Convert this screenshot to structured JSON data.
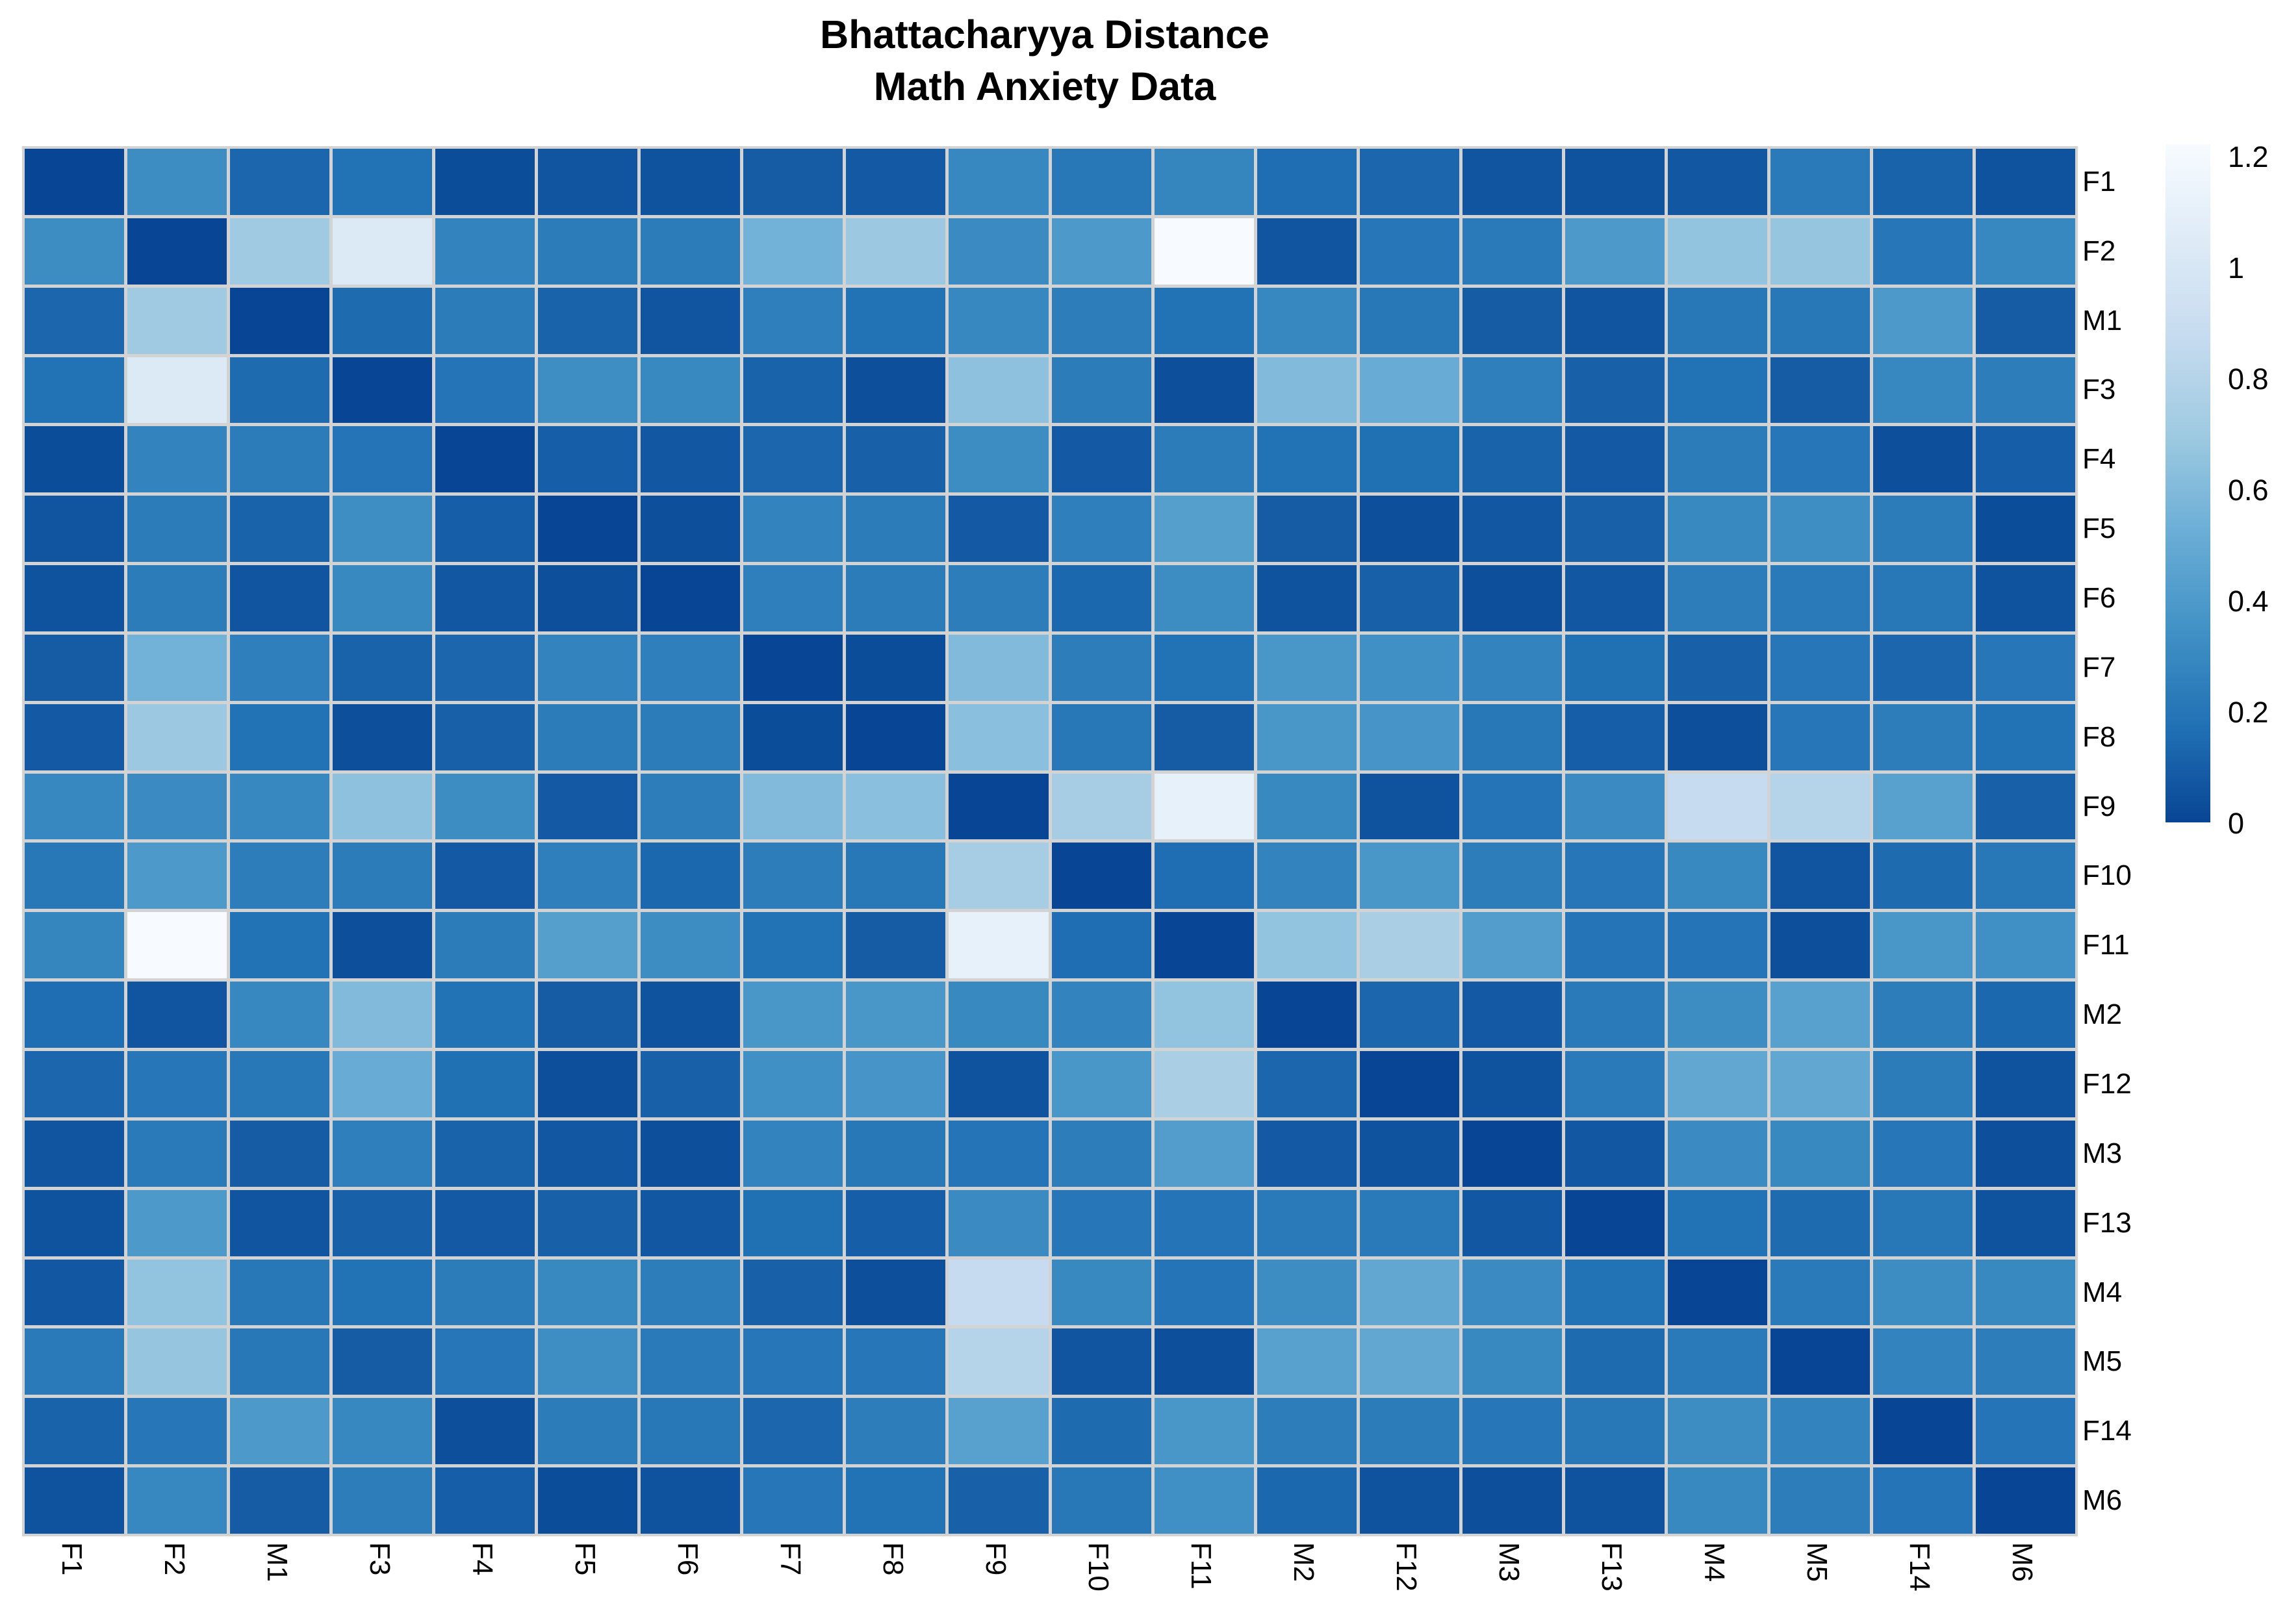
{
  "title": {
    "line1": "Bhattacharyya Distance",
    "line2": "Math Anxiety Data"
  },
  "chart_data": {
    "type": "heatmap",
    "x_labels": [
      "F1",
      "F2",
      "M1",
      "F3",
      "F4",
      "F5",
      "F6",
      "F7",
      "F8",
      "F9",
      "F10",
      "F11",
      "M2",
      "F12",
      "M3",
      "F13",
      "M4",
      "M5",
      "F14",
      "M6"
    ],
    "y_labels": [
      "F1",
      "F2",
      "M1",
      "F3",
      "F4",
      "F5",
      "F6",
      "F7",
      "F8",
      "F9",
      "F10",
      "F11",
      "M2",
      "F12",
      "M3",
      "F13",
      "M4",
      "M5",
      "F14",
      "M6"
    ],
    "matrix": [
      [
        0,
        0.32,
        0.13,
        0.18,
        0.03,
        0.06,
        0.05,
        0.09,
        0.08,
        0.29,
        0.21,
        0.28,
        0.16,
        0.13,
        0.06,
        0.05,
        0.07,
        0.22,
        0.12,
        0.05
      ],
      [
        0.32,
        0,
        0.7,
        1.03,
        0.27,
        0.23,
        0.23,
        0.55,
        0.69,
        0.31,
        0.39,
        1.22,
        0.06,
        0.2,
        0.22,
        0.39,
        0.66,
        0.67,
        0.2,
        0.29
      ],
      [
        0.13,
        0.7,
        0,
        0.15,
        0.23,
        0.12,
        0.06,
        0.25,
        0.18,
        0.29,
        0.24,
        0.18,
        0.29,
        0.21,
        0.09,
        0.06,
        0.21,
        0.21,
        0.39,
        0.09
      ],
      [
        0.18,
        1.03,
        0.15,
        0,
        0.19,
        0.33,
        0.3,
        0.12,
        0.04,
        0.64,
        0.23,
        0.04,
        0.6,
        0.51,
        0.25,
        0.11,
        0.18,
        0.09,
        0.29,
        0.24
      ],
      [
        0.03,
        0.27,
        0.23,
        0.19,
        0,
        0.1,
        0.07,
        0.13,
        0.11,
        0.32,
        0.08,
        0.23,
        0.18,
        0.17,
        0.12,
        0.08,
        0.23,
        0.2,
        0.04,
        0.1
      ],
      [
        0.06,
        0.23,
        0.12,
        0.33,
        0.1,
        0,
        0.04,
        0.27,
        0.23,
        0.08,
        0.25,
        0.43,
        0.09,
        0.04,
        0.07,
        0.11,
        0.3,
        0.33,
        0.23,
        0.03
      ],
      [
        0.05,
        0.23,
        0.06,
        0.3,
        0.07,
        0.04,
        0,
        0.25,
        0.23,
        0.24,
        0.14,
        0.32,
        0.05,
        0.11,
        0.04,
        0.07,
        0.24,
        0.22,
        0.21,
        0.05
      ],
      [
        0.09,
        0.55,
        0.25,
        0.12,
        0.13,
        0.27,
        0.25,
        0,
        0.03,
        0.6,
        0.24,
        0.18,
        0.38,
        0.34,
        0.27,
        0.17,
        0.11,
        0.2,
        0.13,
        0.2
      ],
      [
        0.08,
        0.69,
        0.18,
        0.04,
        0.11,
        0.23,
        0.23,
        0.03,
        0,
        0.63,
        0.21,
        0.09,
        0.38,
        0.37,
        0.21,
        0.1,
        0.04,
        0.2,
        0.24,
        0.18
      ],
      [
        0.29,
        0.31,
        0.29,
        0.64,
        0.32,
        0.08,
        0.24,
        0.6,
        0.63,
        0,
        0.73,
        1.11,
        0.3,
        0.05,
        0.19,
        0.31,
        0.87,
        0.8,
        0.44,
        0.11
      ],
      [
        0.21,
        0.39,
        0.24,
        0.23,
        0.08,
        0.25,
        0.14,
        0.24,
        0.21,
        0.73,
        0,
        0.16,
        0.27,
        0.38,
        0.24,
        0.2,
        0.3,
        0.06,
        0.15,
        0.21
      ],
      [
        0.28,
        1.22,
        0.18,
        0.04,
        0.23,
        0.43,
        0.32,
        0.18,
        0.09,
        1.11,
        0.16,
        0,
        0.66,
        0.75,
        0.42,
        0.19,
        0.19,
        0.04,
        0.38,
        0.34
      ],
      [
        0.16,
        0.06,
        0.29,
        0.6,
        0.18,
        0.09,
        0.05,
        0.38,
        0.38,
        0.3,
        0.27,
        0.66,
        0,
        0.13,
        0.08,
        0.22,
        0.32,
        0.44,
        0.24,
        0.14
      ],
      [
        0.13,
        0.2,
        0.21,
        0.51,
        0.17,
        0.04,
        0.11,
        0.34,
        0.37,
        0.05,
        0.38,
        0.75,
        0.13,
        0,
        0.05,
        0.22,
        0.48,
        0.48,
        0.23,
        0.05
      ],
      [
        0.06,
        0.22,
        0.09,
        0.25,
        0.12,
        0.07,
        0.04,
        0.27,
        0.21,
        0.19,
        0.24,
        0.42,
        0.08,
        0.05,
        0,
        0.07,
        0.31,
        0.3,
        0.2,
        0.04
      ],
      [
        0.05,
        0.39,
        0.06,
        0.11,
        0.08,
        0.11,
        0.07,
        0.17,
        0.1,
        0.31,
        0.2,
        0.19,
        0.22,
        0.22,
        0.07,
        0,
        0.18,
        0.15,
        0.21,
        0.05
      ],
      [
        0.07,
        0.66,
        0.21,
        0.18,
        0.23,
        0.3,
        0.24,
        0.11,
        0.04,
        0.87,
        0.3,
        0.19,
        0.32,
        0.48,
        0.31,
        0.18,
        0,
        0.22,
        0.32,
        0.3
      ],
      [
        0.22,
        0.67,
        0.21,
        0.09,
        0.2,
        0.33,
        0.22,
        0.2,
        0.2,
        0.8,
        0.06,
        0.04,
        0.44,
        0.48,
        0.3,
        0.15,
        0.22,
        0,
        0.27,
        0.24
      ],
      [
        0.12,
        0.2,
        0.39,
        0.29,
        0.04,
        0.23,
        0.21,
        0.13,
        0.24,
        0.44,
        0.15,
        0.38,
        0.24,
        0.23,
        0.2,
        0.21,
        0.32,
        0.27,
        0,
        0.19
      ],
      [
        0.05,
        0.29,
        0.09,
        0.24,
        0.1,
        0.03,
        0.05,
        0.2,
        0.18,
        0.11,
        0.21,
        0.34,
        0.14,
        0.05,
        0.04,
        0.05,
        0.3,
        0.24,
        0.19,
        0
      ]
    ],
    "vmin": 0,
    "vmax": 1.22,
    "colormap": {
      "name": "Blues-reversed",
      "anchors": [
        "#084594",
        "#2171b5",
        "#4292c6",
        "#6baed6",
        "#9ecae1",
        "#c6dbef",
        "#deebf7",
        "#f7fbff"
      ]
    },
    "legend": {
      "tick_labels": [
        "0",
        "0.2",
        "0.4",
        "0.6",
        "0.8",
        "1",
        "1.2"
      ],
      "tick_values": [
        0,
        0.2,
        0.4,
        0.6,
        0.8,
        1,
        1.2
      ],
      "position": "right"
    },
    "grid_line_color": "#d3d3d3",
    "text_color": "#000000",
    "background_color": "#ffffff"
  }
}
